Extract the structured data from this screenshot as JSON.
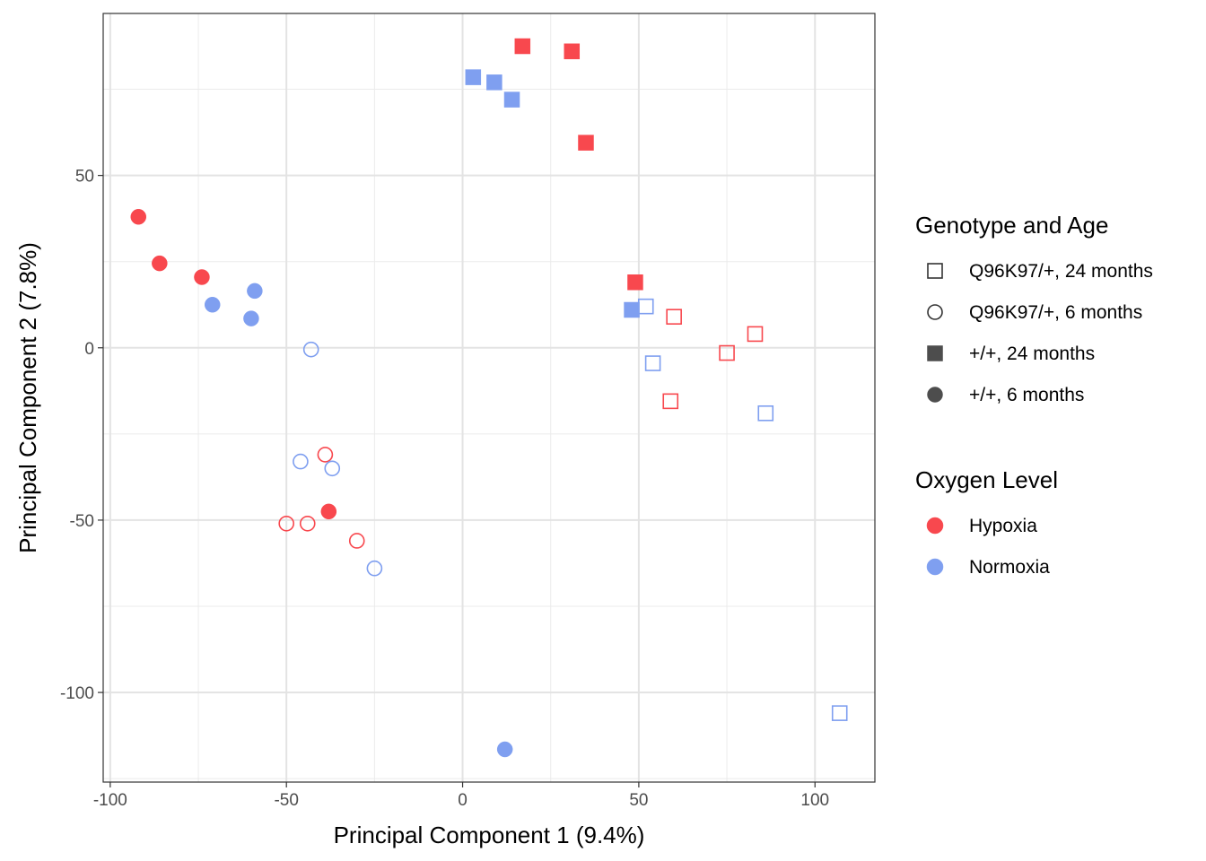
{
  "chart_data": {
    "type": "scatter",
    "xlabel": "Principal Component 1 (9.4%)",
    "ylabel": "Principal Component 2 (7.8%)",
    "xlim": [
      -102,
      117
    ],
    "ylim": [
      -126,
      97
    ],
    "xticks": [
      -100,
      -50,
      0,
      50,
      100
    ],
    "yticks": [
      -100,
      -50,
      0,
      50
    ],
    "grid": true,
    "colors": {
      "Hypoxia": "#f8484e",
      "Normoxia": "#7f9ff0"
    },
    "legends": [
      {
        "title": "Genotype and Age",
        "entries": [
          {
            "label": "Q96K97/+, 24 months",
            "shape": "square",
            "filled": false
          },
          {
            "label": "Q96K97/+, 6 months",
            "shape": "circle",
            "filled": false
          },
          {
            "label": "+/+, 24 months",
            "shape": "square",
            "filled": true
          },
          {
            "label": "+/+, 6 months",
            "shape": "circle",
            "filled": true
          }
        ]
      },
      {
        "title": "Oxygen Level",
        "entries": [
          {
            "label": "Hypoxia",
            "color": "#f8484e"
          },
          {
            "label": "Normoxia",
            "color": "#7f9ff0"
          }
        ]
      }
    ],
    "points": [
      {
        "x": -92,
        "y": 38,
        "shape": "circle",
        "filled": true,
        "oxygen": "Hypoxia"
      },
      {
        "x": -86,
        "y": 24.5,
        "shape": "circle",
        "filled": true,
        "oxygen": "Hypoxia"
      },
      {
        "x": -74,
        "y": 20.5,
        "shape": "circle",
        "filled": true,
        "oxygen": "Hypoxia"
      },
      {
        "x": -71,
        "y": 12.5,
        "shape": "circle",
        "filled": true,
        "oxygen": "Normoxia"
      },
      {
        "x": -59,
        "y": 16.5,
        "shape": "circle",
        "filled": true,
        "oxygen": "Normoxia"
      },
      {
        "x": -60,
        "y": 8.5,
        "shape": "circle",
        "filled": true,
        "oxygen": "Normoxia"
      },
      {
        "x": -43,
        "y": -0.5,
        "shape": "circle",
        "filled": false,
        "oxygen": "Normoxia"
      },
      {
        "x": -39,
        "y": -31,
        "shape": "circle",
        "filled": false,
        "oxygen": "Hypoxia"
      },
      {
        "x": -46,
        "y": -33,
        "shape": "circle",
        "filled": false,
        "oxygen": "Normoxia"
      },
      {
        "x": -37,
        "y": -35,
        "shape": "circle",
        "filled": false,
        "oxygen": "Normoxia"
      },
      {
        "x": -38,
        "y": -47.5,
        "shape": "circle",
        "filled": true,
        "oxygen": "Hypoxia"
      },
      {
        "x": -50,
        "y": -51,
        "shape": "circle",
        "filled": false,
        "oxygen": "Hypoxia"
      },
      {
        "x": -44,
        "y": -51,
        "shape": "circle",
        "filled": false,
        "oxygen": "Hypoxia"
      },
      {
        "x": -30,
        "y": -56,
        "shape": "circle",
        "filled": false,
        "oxygen": "Hypoxia"
      },
      {
        "x": -25,
        "y": -64,
        "shape": "circle",
        "filled": false,
        "oxygen": "Normoxia"
      },
      {
        "x": 12,
        "y": -116.5,
        "shape": "circle",
        "filled": true,
        "oxygen": "Normoxia"
      },
      {
        "x": 17,
        "y": 87.5,
        "shape": "square",
        "filled": true,
        "oxygen": "Hypoxia"
      },
      {
        "x": 31,
        "y": 86,
        "shape": "square",
        "filled": true,
        "oxygen": "Hypoxia"
      },
      {
        "x": 3,
        "y": 78.5,
        "shape": "square",
        "filled": true,
        "oxygen": "Normoxia"
      },
      {
        "x": 9,
        "y": 77,
        "shape": "square",
        "filled": true,
        "oxygen": "Normoxia"
      },
      {
        "x": 14,
        "y": 72,
        "shape": "square",
        "filled": true,
        "oxygen": "Normoxia"
      },
      {
        "x": 35,
        "y": 59.5,
        "shape": "square",
        "filled": true,
        "oxygen": "Hypoxia"
      },
      {
        "x": 49,
        "y": 19,
        "shape": "square",
        "filled": true,
        "oxygen": "Hypoxia"
      },
      {
        "x": 48,
        "y": 11,
        "shape": "square",
        "filled": true,
        "oxygen": "Normoxia"
      },
      {
        "x": 52,
        "y": 12,
        "shape": "square",
        "filled": false,
        "oxygen": "Normoxia"
      },
      {
        "x": 60,
        "y": 9,
        "shape": "square",
        "filled": false,
        "oxygen": "Hypoxia"
      },
      {
        "x": 83,
        "y": 4,
        "shape": "square",
        "filled": false,
        "oxygen": "Hypoxia"
      },
      {
        "x": 75,
        "y": -1.5,
        "shape": "square",
        "filled": false,
        "oxygen": "Hypoxia"
      },
      {
        "x": 54,
        "y": -4.5,
        "shape": "square",
        "filled": false,
        "oxygen": "Normoxia"
      },
      {
        "x": 59,
        "y": -15.5,
        "shape": "square",
        "filled": false,
        "oxygen": "Hypoxia"
      },
      {
        "x": 86,
        "y": -19,
        "shape": "square",
        "filled": false,
        "oxygen": "Normoxia"
      },
      {
        "x": 107,
        "y": -106,
        "shape": "square",
        "filled": false,
        "oxygen": "Normoxia"
      }
    ]
  }
}
